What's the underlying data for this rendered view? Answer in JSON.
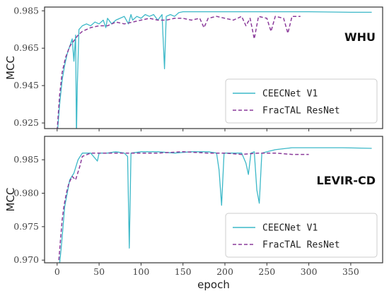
{
  "chart_data": [
    {
      "type": "line",
      "panel_label": "WHU",
      "xlabel": "",
      "ylabel": "MCC",
      "xlim": [
        -15,
        388
      ],
      "ylim": [
        0.922,
        0.987
      ],
      "xticks": [
        0,
        50,
        100,
        150,
        200,
        250,
        300,
        350
      ],
      "yticks": [
        0.925,
        0.945,
        0.965,
        0.985
      ],
      "ytick_labels": [
        "0.925",
        "0.945",
        "0.965",
        "0.985"
      ],
      "grid": false,
      "legend": "bottom-right",
      "series": [
        {
          "name": "CEECNet V1",
          "color": "#3cb8c8",
          "dash": "solid",
          "points": [
            [
              0,
              0.918
            ],
            [
              3,
              0.935
            ],
            [
              6,
              0.948
            ],
            [
              9,
              0.956
            ],
            [
              12,
              0.962
            ],
            [
              15,
              0.966
            ],
            [
              18,
              0.97
            ],
            [
              20,
              0.958
            ],
            [
              22,
              0.972
            ],
            [
              23,
              0.918
            ],
            [
              24,
              0.945
            ],
            [
              26,
              0.975
            ],
            [
              30,
              0.977
            ],
            [
              35,
              0.978
            ],
            [
              40,
              0.977
            ],
            [
              45,
              0.979
            ],
            [
              50,
              0.978
            ],
            [
              55,
              0.98
            ],
            [
              58,
              0.976
            ],
            [
              60,
              0.981
            ],
            [
              65,
              0.978
            ],
            [
              70,
              0.98
            ],
            [
              75,
              0.981
            ],
            [
              80,
              0.982
            ],
            [
              85,
              0.978
            ],
            [
              88,
              0.983
            ],
            [
              90,
              0.98
            ],
            [
              95,
              0.982
            ],
            [
              100,
              0.981
            ],
            [
              105,
              0.983
            ],
            [
              110,
              0.982
            ],
            [
              115,
              0.983
            ],
            [
              120,
              0.98
            ],
            [
              125,
              0.983
            ],
            [
              128,
              0.954
            ],
            [
              130,
              0.982
            ],
            [
              135,
              0.983
            ],
            [
              140,
              0.982
            ],
            [
              145,
              0.984
            ],
            [
              150,
              0.9845
            ],
            [
              200,
              0.9845
            ],
            [
              250,
              0.9845
            ],
            [
              300,
              0.9845
            ],
            [
              350,
              0.9842
            ],
            [
              375,
              0.9842
            ]
          ]
        },
        {
          "name": "FracTAL ResNet",
          "color": "#8a3a9a",
          "dash": "dashed",
          "points": [
            [
              0,
              0.921
            ],
            [
              3,
              0.94
            ],
            [
              6,
              0.952
            ],
            [
              10,
              0.96
            ],
            [
              15,
              0.966
            ],
            [
              20,
              0.969
            ],
            [
              25,
              0.972
            ],
            [
              30,
              0.974
            ],
            [
              40,
              0.976
            ],
            [
              50,
              0.977
            ],
            [
              60,
              0.977
            ],
            [
              70,
              0.979
            ],
            [
              80,
              0.978
            ],
            [
              90,
              0.979
            ],
            [
              100,
              0.98
            ],
            [
              110,
              0.981
            ],
            [
              120,
              0.98
            ],
            [
              130,
              0.98
            ],
            [
              140,
              0.981
            ],
            [
              150,
              0.981
            ],
            [
              160,
              0.98
            ],
            [
              170,
              0.981
            ],
            [
              175,
              0.976
            ],
            [
              180,
              0.981
            ],
            [
              190,
              0.982
            ],
            [
              200,
              0.981
            ],
            [
              210,
              0.98
            ],
            [
              220,
              0.982
            ],
            [
              225,
              0.977
            ],
            [
              230,
              0.981
            ],
            [
              235,
              0.97
            ],
            [
              240,
              0.982
            ],
            [
              250,
              0.981
            ],
            [
              255,
              0.974
            ],
            [
              260,
              0.982
            ],
            [
              270,
              0.981
            ],
            [
              275,
              0.973
            ],
            [
              280,
              0.982
            ],
            [
              290,
              0.982
            ]
          ]
        }
      ]
    },
    {
      "type": "line",
      "panel_label": "LEVIR-CD",
      "xlabel": "epoch",
      "ylabel": "MCC",
      "xlim": [
        -15,
        388
      ],
      "ylim": [
        0.9696,
        0.9885
      ],
      "xticks": [
        0,
        50,
        100,
        150,
        200,
        250,
        300,
        350
      ],
      "yticks": [
        0.97,
        0.975,
        0.98,
        0.985
      ],
      "ytick_labels": [
        "0.970",
        "0.975",
        "0.980",
        "0.985"
      ],
      "grid": false,
      "legend": "bottom-right",
      "series": [
        {
          "name": "CEECNet V1",
          "color": "#3cb8c8",
          "dash": "solid",
          "points": [
            [
              3,
              0.9695
            ],
            [
              5,
              0.972
            ],
            [
              7,
              0.975
            ],
            [
              9,
              0.978
            ],
            [
              12,
              0.98
            ],
            [
              15,
              0.982
            ],
            [
              20,
              0.983
            ],
            [
              25,
              0.985
            ],
            [
              30,
              0.986
            ],
            [
              40,
              0.986
            ],
            [
              48,
              0.9848
            ],
            [
              50,
              0.986
            ],
            [
              60,
              0.986
            ],
            [
              70,
              0.9862
            ],
            [
              80,
              0.986
            ],
            [
              84,
              0.9855
            ],
            [
              86,
              0.9718
            ],
            [
              88,
              0.986
            ],
            [
              100,
              0.9862
            ],
            [
              120,
              0.9862
            ],
            [
              140,
              0.986
            ],
            [
              160,
              0.9862
            ],
            [
              180,
              0.9862
            ],
            [
              190,
              0.986
            ],
            [
              193,
              0.9835
            ],
            [
              196,
              0.9782
            ],
            [
              199,
              0.986
            ],
            [
              210,
              0.986
            ],
            [
              220,
              0.986
            ],
            [
              225,
              0.9845
            ],
            [
              228,
              0.9828
            ],
            [
              231,
              0.986
            ],
            [
              235,
              0.9862
            ],
            [
              238,
              0.9805
            ],
            [
              241,
              0.9785
            ],
            [
              244,
              0.986
            ],
            [
              260,
              0.9865
            ],
            [
              280,
              0.9868
            ],
            [
              300,
              0.9868
            ],
            [
              340,
              0.9868
            ],
            [
              375,
              0.9867
            ]
          ]
        },
        {
          "name": "FracTAL ResNet",
          "color": "#8a3a9a",
          "dash": "dashed",
          "points": [
            [
              2,
              0.97
            ],
            [
              4,
              0.973
            ],
            [
              6,
              0.976
            ],
            [
              8,
              0.978
            ],
            [
              11,
              0.98
            ],
            [
              14,
              0.9815
            ],
            [
              18,
              0.9825
            ],
            [
              22,
              0.982
            ],
            [
              27,
              0.984
            ],
            [
              30,
              0.9855
            ],
            [
              40,
              0.986
            ],
            [
              60,
              0.986
            ],
            [
              80,
              0.986
            ],
            [
              100,
              0.986
            ],
            [
              120,
              0.986
            ],
            [
              150,
              0.9862
            ],
            [
              180,
              0.986
            ],
            [
              200,
              0.986
            ],
            [
              220,
              0.9858
            ],
            [
              240,
              0.986
            ],
            [
              260,
              0.986
            ],
            [
              280,
              0.9858
            ],
            [
              300,
              0.9858
            ]
          ]
        }
      ]
    }
  ]
}
